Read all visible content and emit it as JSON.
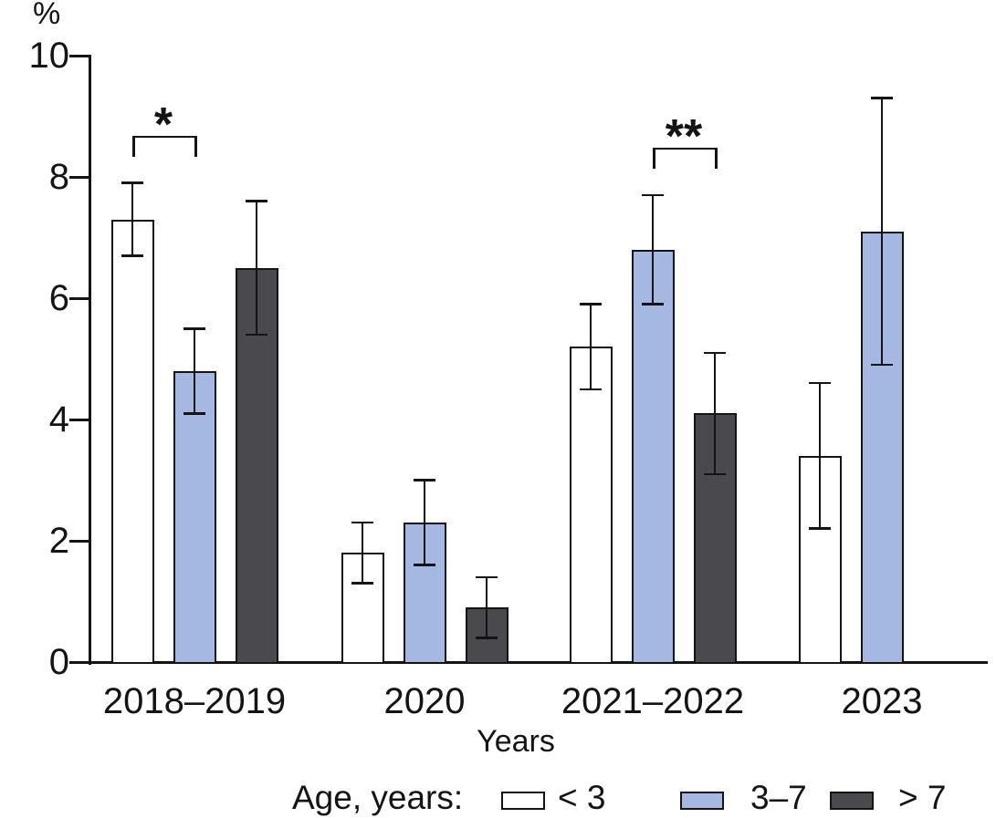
{
  "chart_data": {
    "type": "bar",
    "title": "",
    "ylabel": "%",
    "xlabel": "Years",
    "ylim": [
      0,
      10
    ],
    "yticks": [
      0,
      2,
      4,
      6,
      8,
      10
    ],
    "grid": false,
    "legend_position": "bottom",
    "legend_title": "Age, years:",
    "categories": [
      "2018–2019",
      "2020",
      "2021–2022",
      "2023"
    ],
    "series": [
      {
        "name": "< 3",
        "color": "#ffffff",
        "values": [
          7.3,
          1.8,
          5.2,
          3.4
        ],
        "error_low": [
          6.7,
          1.3,
          4.5,
          2.2
        ],
        "error_high": [
          7.9,
          2.3,
          5.9,
          4.6
        ]
      },
      {
        "name": "3–7",
        "color": "#a5b8e1",
        "values": [
          4.8,
          2.3,
          6.8,
          7.1
        ],
        "error_low": [
          4.1,
          1.6,
          5.9,
          4.9
        ],
        "error_high": [
          5.5,
          3.0,
          7.7,
          9.3
        ]
      },
      {
        "name": "> 7",
        "color": "#4a494e",
        "values": [
          6.5,
          0.9,
          4.1,
          null
        ],
        "error_low": [
          5.4,
          0.4,
          3.1,
          null
        ],
        "error_high": [
          7.6,
          1.4,
          5.1,
          null
        ]
      }
    ],
    "significance_markers": [
      {
        "label": "*",
        "category": "2018–2019",
        "from_series": "< 3",
        "to_series": "3–7"
      },
      {
        "label": "**",
        "category": "2021–2022",
        "from_series": "3–7",
        "to_series": "> 7"
      }
    ]
  }
}
